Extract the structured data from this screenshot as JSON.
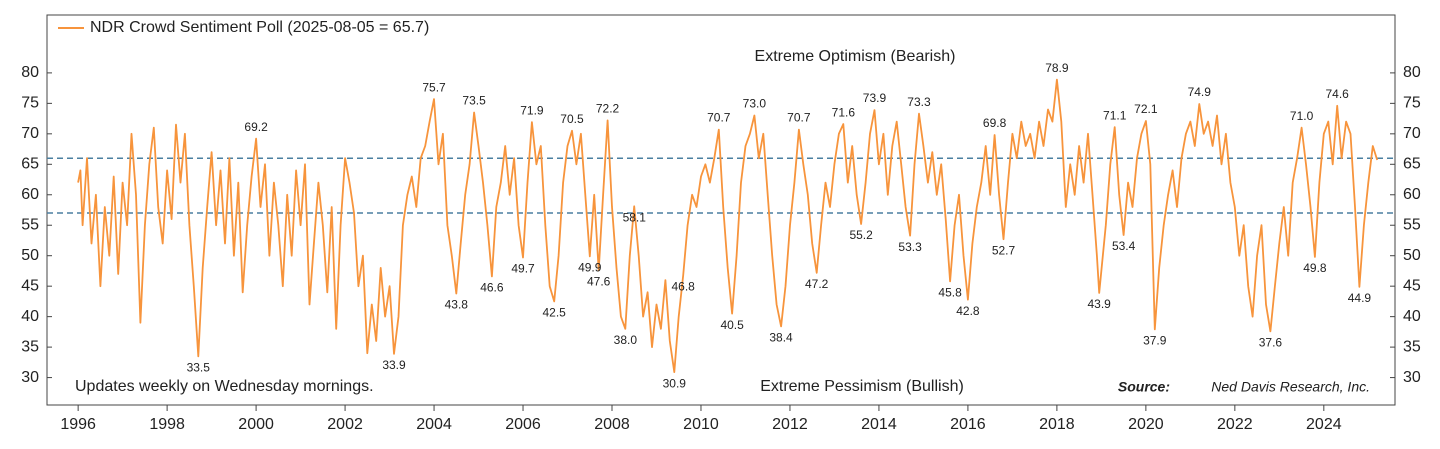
{
  "chart_data": {
    "type": "line",
    "legend_label": "NDR Crowd Sentiment Poll (2025-08-05 = 65.7)",
    "top_note": "Extreme Optimism (Bearish)",
    "bottom_note": "Extreme Pessimism (Bullish)",
    "update_note": "Updates weekly on Wednesday mornings.",
    "source_label": "Source:",
    "source": "Ned Davis Research, Inc.",
    "color": "#f7943c",
    "reference_lines": [
      66,
      57
    ],
    "reference_color": "#4a7fa0",
    "xlim": [
      1995.3,
      2025.6
    ],
    "ylim": [
      25.5,
      89.5
    ],
    "xticks": [
      1996,
      1998,
      2000,
      2002,
      2004,
      2006,
      2008,
      2010,
      2012,
      2014,
      2016,
      2018,
      2020,
      2022,
      2024
    ],
    "yticks": [
      30,
      35,
      40,
      45,
      50,
      55,
      60,
      65,
      70,
      75,
      80
    ],
    "x": [
      1996.0,
      1996.05,
      1996.1,
      1996.2,
      1996.3,
      1996.4,
      1996.5,
      1996.6,
      1996.7,
      1996.8,
      1996.9,
      1997.0,
      1997.1,
      1997.2,
      1997.3,
      1997.4,
      1997.5,
      1997.6,
      1997.7,
      1997.8,
      1997.9,
      1998.0,
      1998.1,
      1998.2,
      1998.3,
      1998.4,
      1998.5,
      1998.6,
      1998.7,
      1998.8,
      1998.9,
      1999.0,
      1999.1,
      1999.2,
      1999.3,
      1999.4,
      1999.5,
      1999.6,
      1999.7,
      1999.8,
      1999.9,
      2000.0,
      2000.1,
      2000.2,
      2000.3,
      2000.4,
      2000.5,
      2000.6,
      2000.7,
      2000.8,
      2000.9,
      2001.0,
      2001.1,
      2001.2,
      2001.3,
      2001.4,
      2001.5,
      2001.6,
      2001.7,
      2001.8,
      2001.9,
      2002.0,
      2002.1,
      2002.2,
      2002.3,
      2002.4,
      2002.5,
      2002.6,
      2002.7,
      2002.8,
      2002.9,
      2003.0,
      2003.1,
      2003.2,
      2003.3,
      2003.4,
      2003.5,
      2003.6,
      2003.7,
      2003.8,
      2003.9,
      2004.0,
      2004.1,
      2004.2,
      2004.3,
      2004.4,
      2004.5,
      2004.6,
      2004.7,
      2004.8,
      2004.9,
      2005.0,
      2005.1,
      2005.2,
      2005.3,
      2005.4,
      2005.5,
      2005.6,
      2005.7,
      2005.8,
      2005.9,
      2006.0,
      2006.1,
      2006.2,
      2006.3,
      2006.4,
      2006.5,
      2006.6,
      2006.7,
      2006.8,
      2006.9,
      2007.0,
      2007.1,
      2007.2,
      2007.3,
      2007.4,
      2007.5,
      2007.6,
      2007.7,
      2007.8,
      2007.9,
      2008.0,
      2008.1,
      2008.2,
      2008.3,
      2008.4,
      2008.5,
      2008.6,
      2008.7,
      2008.8,
      2008.9,
      2009.0,
      2009.1,
      2009.2,
      2009.3,
      2009.4,
      2009.5,
      2009.6,
      2009.7,
      2009.8,
      2009.9,
      2010.0,
      2010.1,
      2010.2,
      2010.3,
      2010.4,
      2010.5,
      2010.6,
      2010.7,
      2010.8,
      2010.9,
      2011.0,
      2011.1,
      2011.2,
      2011.3,
      2011.4,
      2011.5,
      2011.6,
      2011.7,
      2011.8,
      2011.9,
      2012.0,
      2012.1,
      2012.2,
      2012.3,
      2012.4,
      2012.5,
      2012.6,
      2012.7,
      2012.8,
      2012.9,
      2013.0,
      2013.1,
      2013.2,
      2013.3,
      2013.4,
      2013.5,
      2013.6,
      2013.7,
      2013.8,
      2013.9,
      2014.0,
      2014.1,
      2014.2,
      2014.3,
      2014.4,
      2014.5,
      2014.6,
      2014.7,
      2014.8,
      2014.9,
      2015.0,
      2015.1,
      2015.2,
      2015.3,
      2015.4,
      2015.5,
      2015.6,
      2015.7,
      2015.8,
      2015.9,
      2016.0,
      2016.1,
      2016.2,
      2016.3,
      2016.4,
      2016.5,
      2016.6,
      2016.7,
      2016.8,
      2016.9,
      2017.0,
      2017.1,
      2017.2,
      2017.3,
      2017.4,
      2017.5,
      2017.6,
      2017.7,
      2017.8,
      2017.9,
      2018.0,
      2018.1,
      2018.2,
      2018.3,
      2018.4,
      2018.5,
      2018.6,
      2018.7,
      2018.8,
      2018.9,
      2018.95,
      2019.1,
      2019.2,
      2019.3,
      2019.4,
      2019.5,
      2019.6,
      2019.7,
      2019.8,
      2019.9,
      2020.0,
      2020.1,
      2020.2,
      2020.3,
      2020.4,
      2020.5,
      2020.6,
      2020.7,
      2020.8,
      2020.9,
      2021.0,
      2021.1,
      2021.2,
      2021.3,
      2021.4,
      2021.5,
      2021.6,
      2021.7,
      2021.8,
      2021.9,
      2022.0,
      2022.1,
      2022.2,
      2022.3,
      2022.4,
      2022.5,
      2022.6,
      2022.7,
      2022.8,
      2022.9,
      2023.0,
      2023.1,
      2023.2,
      2023.3,
      2023.4,
      2023.5,
      2023.6,
      2023.7,
      2023.8,
      2023.9,
      2024.0,
      2024.1,
      2024.2,
      2024.3,
      2024.4,
      2024.5,
      2024.6,
      2024.7,
      2024.8,
      2024.9,
      2025.0,
      2025.1,
      2025.2
    ],
    "values": [
      62,
      64,
      55,
      66,
      52,
      60,
      45,
      58,
      50,
      63,
      47,
      62,
      55,
      70,
      60,
      39,
      55,
      65,
      71,
      58,
      52,
      64,
      56,
      71.5,
      62,
      70,
      55,
      45,
      33.5,
      48,
      58,
      67,
      55,
      64,
      52,
      66,
      50,
      62,
      44,
      55,
      63,
      69.2,
      58,
      65,
      50,
      62,
      55,
      45,
      60,
      50,
      64,
      55,
      65,
      42,
      52,
      62,
      55,
      44,
      58,
      38,
      55,
      66,
      62,
      57,
      45,
      50,
      34,
      42,
      36,
      48,
      40,
      45,
      33.9,
      40,
      55,
      60,
      63,
      58,
      66,
      68,
      72,
      75.7,
      65,
      70,
      55,
      50,
      43.8,
      52,
      60,
      65,
      73.5,
      68,
      62,
      55,
      46.6,
      58,
      62,
      68,
      60,
      66,
      55,
      49.7,
      62,
      71.9,
      65,
      68,
      55,
      45,
      42.5,
      50,
      62,
      68,
      70.5,
      65,
      70,
      60,
      49.9,
      60,
      47.6,
      60,
      72.2,
      58,
      48,
      40,
      38.0,
      50,
      58.1,
      50,
      40,
      44,
      35,
      42,
      38,
      46,
      36,
      30.9,
      40,
      46.8,
      55,
      60,
      58,
      63,
      65,
      62,
      66,
      70.7,
      58,
      48,
      40.5,
      50,
      62,
      68,
      70,
      73.0,
      66,
      70,
      60,
      50,
      42,
      38.4,
      45,
      55,
      62,
      70.7,
      65,
      60,
      52,
      47.2,
      55,
      62,
      58,
      65,
      70,
      71.6,
      62,
      68,
      60,
      55.2,
      62,
      70,
      73.9,
      65,
      70,
      60,
      68,
      72,
      65,
      58,
      53.3,
      65,
      73.3,
      68,
      62,
      67,
      60,
      65,
      56,
      45.8,
      55,
      60,
      50,
      42.8,
      52,
      58,
      62,
      68,
      60,
      69.8,
      60,
      52.7,
      62,
      70,
      66,
      72,
      68,
      70,
      66,
      72,
      68,
      74,
      72,
      78.9,
      72,
      58,
      65,
      60,
      68,
      62,
      70,
      60,
      50,
      43.9,
      55,
      65,
      71.1,
      60,
      53.4,
      62,
      58,
      66,
      70,
      72.1,
      65,
      37.9,
      48,
      55,
      60,
      64,
      58,
      66,
      70,
      72,
      68,
      74.9,
      70,
      72,
      68,
      73,
      65,
      70,
      62,
      58,
      50,
      55,
      45,
      40,
      50,
      55,
      42,
      37.6,
      45,
      52,
      58,
      50,
      62,
      66,
      71.0,
      65,
      58,
      49.8,
      62,
      70,
      72,
      65,
      74.6,
      66,
      72,
      70,
      58,
      44.9,
      55,
      62,
      68,
      65.7
    ],
    "annotations": [
      {
        "x": 1998.7,
        "value": 33.5
      },
      {
        "x": 2000.0,
        "value": 69.2
      },
      {
        "x": 2003.1,
        "value": 33.9
      },
      {
        "x": 2004.0,
        "value": 75.7
      },
      {
        "x": 2004.5,
        "value": 43.8
      },
      {
        "x": 2004.9,
        "value": 73.5
      },
      {
        "x": 2005.3,
        "value": 46.6
      },
      {
        "x": 2006.0,
        "value": 49.7
      },
      {
        "x": 2006.2,
        "value": 71.9
      },
      {
        "x": 2006.7,
        "value": 42.5
      },
      {
        "x": 2007.1,
        "value": 70.5
      },
      {
        "x": 2007.5,
        "value": 49.9
      },
      {
        "x": 2007.7,
        "value": 47.6
      },
      {
        "x": 2007.9,
        "value": 72.2
      },
      {
        "x": 2008.3,
        "value": 38.0,
        "label": "38.0"
      },
      {
        "x": 2008.5,
        "value": 58.1
      },
      {
        "x": 2009.4,
        "value": 30.9
      },
      {
        "x": 2009.6,
        "value": 46.8
      },
      {
        "x": 2010.4,
        "value": 70.7
      },
      {
        "x": 2010.7,
        "value": 40.5
      },
      {
        "x": 2011.2,
        "value": 73.0,
        "label": "73.0"
      },
      {
        "x": 2011.8,
        "value": 38.4
      },
      {
        "x": 2012.2,
        "value": 70.7
      },
      {
        "x": 2012.6,
        "value": 47.2
      },
      {
        "x": 2013.2,
        "value": 71.6
      },
      {
        "x": 2013.6,
        "value": 55.2
      },
      {
        "x": 2013.9,
        "value": 73.9
      },
      {
        "x": 2014.7,
        "value": 53.3
      },
      {
        "x": 2014.9,
        "value": 73.3
      },
      {
        "x": 2015.6,
        "value": 45.8
      },
      {
        "x": 2016.0,
        "value": 42.8
      },
      {
        "x": 2016.6,
        "value": 69.8
      },
      {
        "x": 2016.8,
        "value": 52.7
      },
      {
        "x": 2018.0,
        "value": 78.9
      },
      {
        "x": 2018.95,
        "value": 43.9
      },
      {
        "x": 2019.3,
        "value": 71.1
      },
      {
        "x": 2019.5,
        "value": 53.4
      },
      {
        "x": 2020.0,
        "value": 72.1
      },
      {
        "x": 2020.2,
        "value": 37.9
      },
      {
        "x": 2021.2,
        "value": 74.9
      },
      {
        "x": 2022.8,
        "value": 37.6
      },
      {
        "x": 2023.5,
        "value": 71.0,
        "label": "71.0"
      },
      {
        "x": 2023.8,
        "value": 49.8
      },
      {
        "x": 2024.3,
        "value": 74.6
      },
      {
        "x": 2024.8,
        "value": 44.9
      }
    ]
  }
}
